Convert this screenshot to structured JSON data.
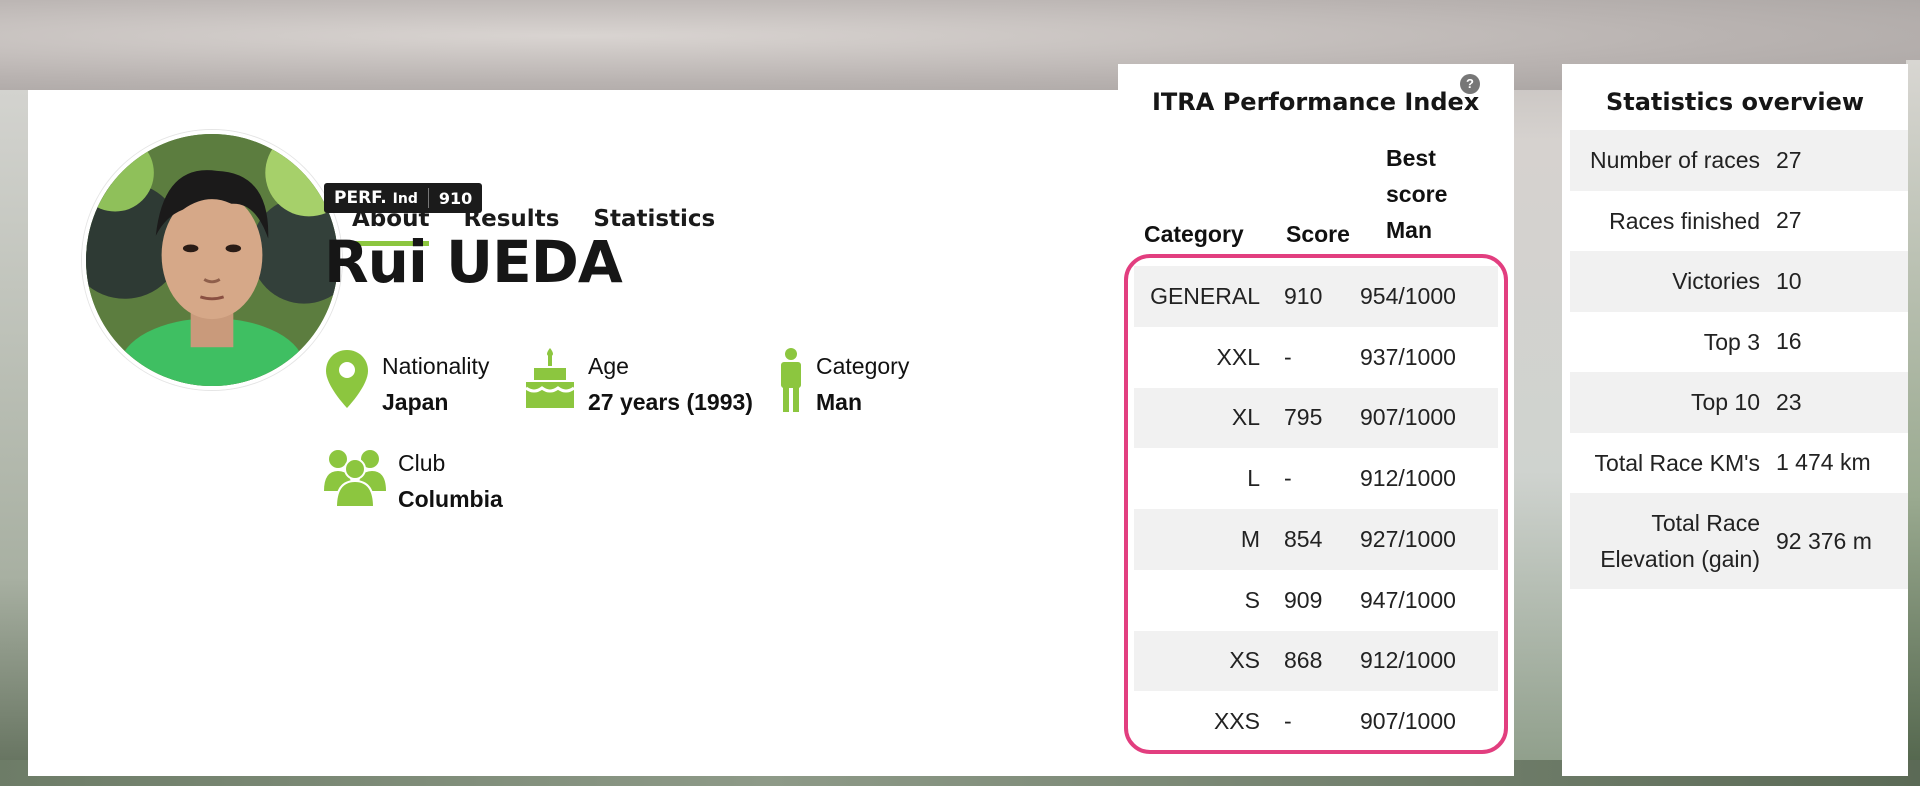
{
  "profile": {
    "tabs": [
      {
        "label": "About"
      },
      {
        "label": "Results"
      },
      {
        "label": "Statistics"
      }
    ],
    "perf_badge": {
      "label": "PERF.",
      "label_small": "Ind",
      "value": "910"
    },
    "name": "Rui UEDA",
    "nationality": {
      "label": "Nationality",
      "value": "Japan"
    },
    "age": {
      "label": "Age",
      "value": "27 years (1993)"
    },
    "category": {
      "label": "Category",
      "value": "Man"
    },
    "club": {
      "label": "Club",
      "value": "Columbia"
    },
    "accent_color": "#8cc63f"
  },
  "itra": {
    "title": "ITRA Performance Index",
    "help": "?",
    "headers": {
      "category": "Category",
      "score": "Score",
      "best": [
        "Best",
        "score",
        "Man"
      ]
    },
    "highlight_color": "#e23e7f",
    "rows": [
      {
        "category": "GENERAL",
        "score": "910",
        "best": "954/1000"
      },
      {
        "category": "XXL",
        "score": "-",
        "best": "937/1000"
      },
      {
        "category": "XL",
        "score": "795",
        "best": "907/1000"
      },
      {
        "category": "L",
        "score": "-",
        "best": "912/1000"
      },
      {
        "category": "M",
        "score": "854",
        "best": "927/1000"
      },
      {
        "category": "S",
        "score": "909",
        "best": "947/1000"
      },
      {
        "category": "XS",
        "score": "868",
        "best": "912/1000"
      },
      {
        "category": "XXS",
        "score": "-",
        "best": "907/1000"
      }
    ]
  },
  "stats": {
    "title": "Statistics overview",
    "rows": [
      {
        "label": "Number of races",
        "value": "27"
      },
      {
        "label": "Races finished",
        "value": "27"
      },
      {
        "label": "Victories",
        "value": "10"
      },
      {
        "label": "Top 3",
        "value": "16"
      },
      {
        "label": "Top 10",
        "value": "23"
      },
      {
        "label": "Total Race KM's",
        "value": "1 474 km"
      },
      {
        "label": "Total Race Elevation (gain)",
        "value": "92 376 m"
      }
    ]
  }
}
